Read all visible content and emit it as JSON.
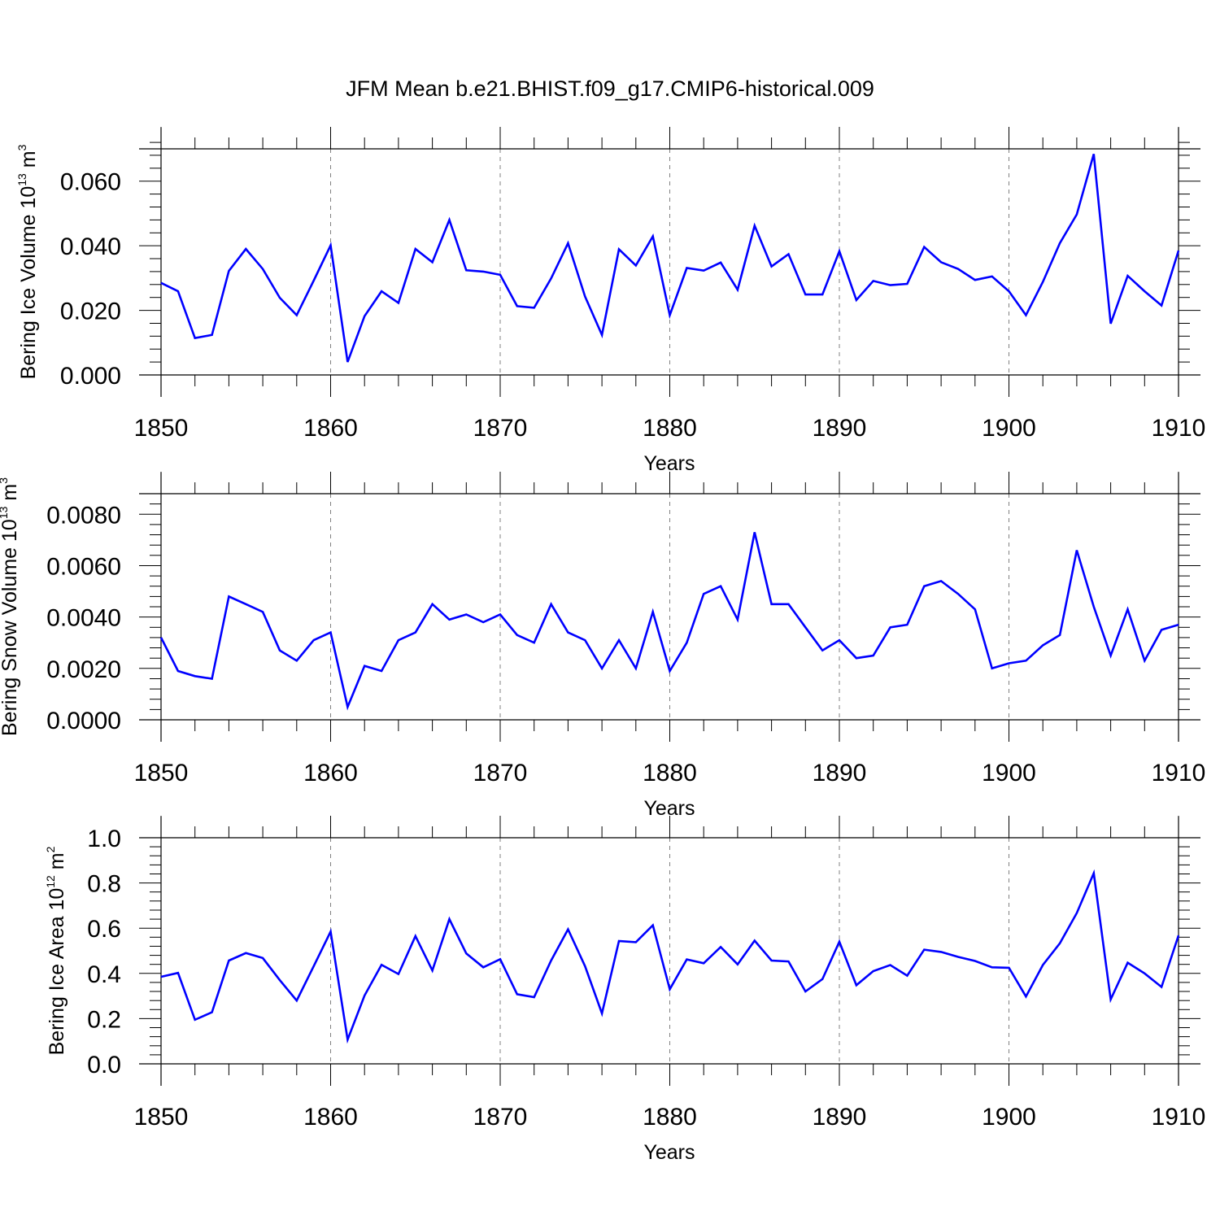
{
  "title": "JFM Mean b.e21.BHIST.f09_g17.CMIP6-historical.009",
  "colors": {
    "series": "#0000ff",
    "axis": "#000000",
    "grid": "#808080",
    "background": "#ffffff"
  },
  "chart_data": [
    {
      "type": "line",
      "panel": "ice-volume",
      "xlabel": "Years",
      "ylabel": {
        "prefix": "Bering Ice Volume 10",
        "exponent": "13",
        "unit": " m",
        "unit_exponent": "3"
      },
      "xlim": [
        1850,
        1910
      ],
      "ylim": [
        0,
        0.07
      ],
      "xticks": [
        1850,
        1860,
        1870,
        1880,
        1890,
        1900,
        1910
      ],
      "xtick_labels": [
        "1850",
        "1860",
        "1870",
        "1880",
        "1890",
        "1900",
        "1910"
      ],
      "yticks": [
        0,
        0.02,
        0.04,
        0.06
      ],
      "ytick_labels": [
        "0.000",
        "0.020",
        "0.040",
        "0.060"
      ],
      "grid_x": [
        1860,
        1870,
        1880,
        1890,
        1900
      ],
      "series": [
        {
          "name": "Bering Ice Volume",
          "x": [
            1850,
            1851,
            1852,
            1853,
            1854,
            1855,
            1856,
            1857,
            1858,
            1859,
            1860,
            1861,
            1862,
            1863,
            1864,
            1865,
            1866,
            1867,
            1868,
            1869,
            1870,
            1871,
            1872,
            1873,
            1874,
            1875,
            1876,
            1877,
            1878,
            1879,
            1880,
            1881,
            1882,
            1883,
            1884,
            1885,
            1886,
            1887,
            1888,
            1889,
            1890,
            1891,
            1892,
            1893,
            1894,
            1895,
            1896,
            1897,
            1898,
            1899,
            1900,
            1901,
            1902,
            1903,
            1904,
            1905,
            1906,
            1907,
            1908,
            1909,
            1910
          ],
          "values": [
            0.0285,
            0.0259,
            0.0114,
            0.0124,
            0.0322,
            0.039,
            0.0328,
            0.0239,
            0.0185,
            0.0292,
            0.0401,
            0.004,
            0.0182,
            0.0259,
            0.0223,
            0.039,
            0.0349,
            0.048,
            0.0324,
            0.032,
            0.031,
            0.0213,
            0.0208,
            0.0299,
            0.0408,
            0.0243,
            0.0124,
            0.0389,
            0.0339,
            0.0429,
            0.0185,
            0.0331,
            0.0323,
            0.0348,
            0.0264,
            0.0462,
            0.0336,
            0.0374,
            0.0249,
            0.0249,
            0.0383,
            0.0232,
            0.0291,
            0.0278,
            0.0282,
            0.0396,
            0.0349,
            0.0328,
            0.0294,
            0.0305,
            0.0259,
            0.0185,
            0.0288,
            0.0408,
            0.0497,
            0.0684,
            0.0159,
            0.0307,
            0.0259,
            0.0215,
            0.0385
          ]
        }
      ]
    },
    {
      "type": "line",
      "panel": "snow-volume",
      "xlabel": "Years",
      "ylabel": {
        "prefix": "Bering Snow Volume 10",
        "exponent": "13",
        "unit": " m",
        "unit_exponent": "3"
      },
      "xlim": [
        1850,
        1910
      ],
      "ylim": [
        0,
        0.0088
      ],
      "xticks": [
        1850,
        1860,
        1870,
        1880,
        1890,
        1900,
        1910
      ],
      "xtick_labels": [
        "1850",
        "1860",
        "1870",
        "1880",
        "1890",
        "1900",
        "1910"
      ],
      "yticks": [
        0,
        0.002,
        0.004,
        0.006,
        0.008
      ],
      "ytick_labels": [
        "0.0000",
        "0.0020",
        "0.0040",
        "0.0060",
        "0.0080"
      ],
      "grid_x": [
        1860,
        1870,
        1880,
        1890,
        1900
      ],
      "series": [
        {
          "name": "Bering Snow Volume",
          "x": [
            1850,
            1851,
            1852,
            1853,
            1854,
            1855,
            1856,
            1857,
            1858,
            1859,
            1860,
            1861,
            1862,
            1863,
            1864,
            1865,
            1866,
            1867,
            1868,
            1869,
            1870,
            1871,
            1872,
            1873,
            1874,
            1875,
            1876,
            1877,
            1878,
            1879,
            1880,
            1881,
            1882,
            1883,
            1884,
            1885,
            1886,
            1887,
            1888,
            1889,
            1890,
            1891,
            1892,
            1893,
            1894,
            1895,
            1896,
            1897,
            1898,
            1899,
            1900,
            1901,
            1902,
            1903,
            1904,
            1905,
            1906,
            1907,
            1908,
            1909,
            1910
          ],
          "values": [
            0.0032,
            0.0019,
            0.0017,
            0.0016,
            0.0048,
            0.0045,
            0.0042,
            0.0027,
            0.0023,
            0.0031,
            0.0034,
            0.0005,
            0.0021,
            0.0019,
            0.0031,
            0.0034,
            0.0045,
            0.0039,
            0.0041,
            0.0038,
            0.0041,
            0.0033,
            0.003,
            0.0045,
            0.0034,
            0.0031,
            0.002,
            0.0031,
            0.002,
            0.0042,
            0.0019,
            0.003,
            0.0049,
            0.0052,
            0.0039,
            0.0073,
            0.0045,
            0.0045,
            0.0036,
            0.0027,
            0.0031,
            0.0024,
            0.0025,
            0.0036,
            0.0037,
            0.0052,
            0.0054,
            0.0049,
            0.0043,
            0.002,
            0.0022,
            0.0023,
            0.0029,
            0.0033,
            0.0066,
            0.0044,
            0.0025,
            0.0043,
            0.0023,
            0.0035,
            0.0037
          ]
        }
      ]
    },
    {
      "type": "line",
      "panel": "ice-area",
      "xlabel": "Years",
      "ylabel": {
        "prefix": "Bering Ice Area 10",
        "exponent": "12",
        "unit": " m",
        "unit_exponent": "2"
      },
      "xlim": [
        1850,
        1910
      ],
      "ylim": [
        0,
        1.0
      ],
      "xticks": [
        1850,
        1860,
        1870,
        1880,
        1890,
        1900,
        1910
      ],
      "xtick_labels": [
        "1850",
        "1860",
        "1870",
        "1880",
        "1890",
        "1900",
        "1910"
      ],
      "yticks": [
        0,
        0.2,
        0.4,
        0.6,
        0.8,
        1.0
      ],
      "ytick_labels": [
        "0.0",
        "0.2",
        "0.4",
        "0.6",
        "0.8",
        "1.0"
      ],
      "grid_x": [
        1860,
        1870,
        1880,
        1890,
        1900
      ],
      "series": [
        {
          "name": "Bering Ice Area",
          "x": [
            1850,
            1851,
            1852,
            1853,
            1854,
            1855,
            1856,
            1857,
            1858,
            1859,
            1860,
            1861,
            1862,
            1863,
            1864,
            1865,
            1866,
            1867,
            1868,
            1869,
            1870,
            1871,
            1872,
            1873,
            1874,
            1875,
            1876,
            1877,
            1878,
            1879,
            1880,
            1881,
            1882,
            1883,
            1884,
            1885,
            1886,
            1887,
            1888,
            1889,
            1890,
            1891,
            1892,
            1893,
            1894,
            1895,
            1896,
            1897,
            1898,
            1899,
            1900,
            1901,
            1902,
            1903,
            1904,
            1905,
            1906,
            1907,
            1908,
            1909,
            1910
          ],
          "values": [
            0.385,
            0.402,
            0.195,
            0.228,
            0.457,
            0.49,
            0.468,
            0.37,
            0.28,
            0.432,
            0.585,
            0.107,
            0.302,
            0.438,
            0.397,
            0.565,
            0.413,
            0.64,
            0.488,
            0.427,
            0.463,
            0.308,
            0.295,
            0.457,
            0.595,
            0.432,
            0.223,
            0.543,
            0.538,
            0.613,
            0.33,
            0.462,
            0.445,
            0.517,
            0.44,
            0.545,
            0.457,
            0.453,
            0.32,
            0.375,
            0.54,
            0.348,
            0.41,
            0.437,
            0.39,
            0.505,
            0.495,
            0.473,
            0.455,
            0.427,
            0.425,
            0.298,
            0.437,
            0.533,
            0.667,
            0.843,
            0.285,
            0.447,
            0.4,
            0.34,
            0.568
          ]
        }
      ]
    }
  ]
}
